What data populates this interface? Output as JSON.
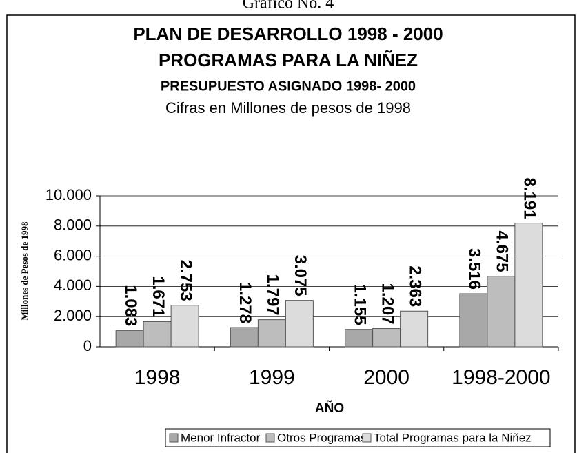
{
  "chart_data": {
    "type": "bar",
    "caption": "Gráfico No. 4",
    "title": "PLAN DE DESARROLLO 1998 - 2000",
    "subtitle": "PROGRAMAS PARA LA NIÑEZ",
    "subtitle2": "PRESUPUESTO ASIGNADO 1998- 2000",
    "note": "Cifras en Millones de pesos de 1998",
    "x_label": "AÑO",
    "y_label": "Millones de Pesos de 1998",
    "categories": [
      "1998",
      "1999",
      "2000",
      "1998-2000"
    ],
    "series": [
      {
        "name": "Menor Infractor",
        "color": "#a8a8a8",
        "values": [
          1083,
          1278,
          1155,
          3516
        ],
        "value_labels": [
          "1.083",
          "1.278",
          "1.155",
          "3.516"
        ]
      },
      {
        "name": "Otros Programas",
        "color": "#bdbdbd",
        "values": [
          1671,
          1797,
          1207,
          4675
        ],
        "value_labels": [
          "1.671",
          "1.797",
          "1.207",
          "4.675"
        ]
      },
      {
        "name": "Total Programas para la Niñez",
        "color": "#dcdcdc",
        "values": [
          2753,
          3075,
          2363,
          8191
        ],
        "value_labels": [
          "2.753",
          "3.075",
          "2.363",
          "8.191"
        ]
      }
    ],
    "ylim": [
      0,
      10000
    ],
    "yticks": [
      0,
      {
        "value": 2000,
        "label": "2.000"
      },
      {
        "value": 4000,
        "label": "4.000"
      },
      {
        "value": 6000,
        "label": "6.000"
      },
      {
        "value": 8000,
        "label": "8.000"
      },
      {
        "value": 10000,
        "label": "10.000"
      }
    ],
    "grid": true,
    "legend": "bottom"
  }
}
